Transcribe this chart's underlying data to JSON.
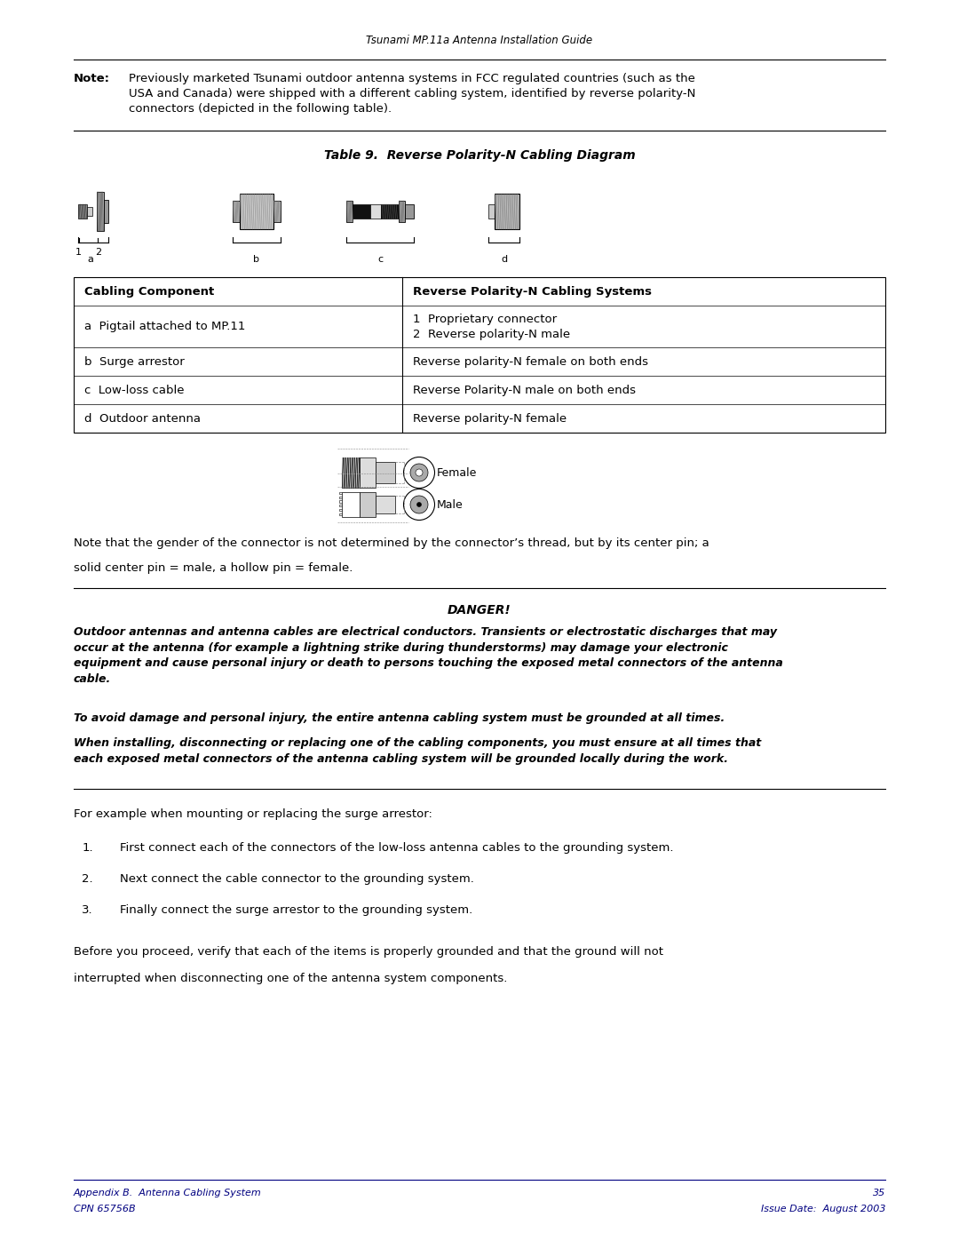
{
  "page_width": 10.8,
  "page_height": 13.97,
  "dpi": 100,
  "bg_color": "#ffffff",
  "header_text": "Tsunami MP.11a Antenna Installation Guide",
  "header_color": "#000000",
  "header_fontsize": 8.5,
  "note_label": "Note:",
  "note_text": "Previously marketed Tsunami outdoor antenna systems in FCC regulated countries (such as the\nUSA and Canada) were shipped with a different cabling system, identified by reverse polarity-N\nconnectors (depicted in the following table).",
  "note_fontsize": 9.5,
  "table_title": "Table 9.  Reverse Polarity-N Cabling Diagram",
  "table_title_fontsize": 10,
  "col1_header": "Cabling Component",
  "col2_header": "Reverse Polarity-N Cabling Systems",
  "col_header_fontsize": 9.5,
  "rows": [
    [
      "a  Pigtail attached to MP.11",
      "1  Proprietary connector\n2  Reverse polarity-N male"
    ],
    [
      "b  Surge arrestor",
      "Reverse polarity-N female on both ends"
    ],
    [
      "c  Low-loss cable",
      "Reverse Polarity-N male on both ends"
    ],
    [
      "d  Outdoor antenna",
      "Reverse polarity-N female"
    ]
  ],
  "row_fontsize": 9.5,
  "note_text2_line1": "Note that the gender of the connector is not determined by the connector’s thread, but by its center pin; a",
  "note_text2_line2": "solid center pin = male, a hollow pin = female.",
  "note_text2_fontsize": 9.5,
  "danger_title": "DANGER!",
  "danger_text1": "Outdoor antennas and antenna cables are electrical conductors. Transients or electrostatic discharges that may\noccur at the antenna (for example a lightning strike during thunderstorms) may damage your electronic\nequipment and cause personal injury or death to persons touching the exposed metal connectors of the antenna\ncable.",
  "danger_text2": "To avoid damage and personal injury, the entire antenna cabling system must be grounded at all times.",
  "danger_text3": "When installing, disconnecting or replacing one of the cabling components, you must ensure at all times that\neach exposed metal connectors of the antenna cabling system will be grounded locally during the work.",
  "danger_fontsize": 9.0,
  "example_text": "For example when mounting or replacing the surge arrestor:",
  "example_fontsize": 9.5,
  "steps": [
    "First connect each of the connectors of the low-loss antenna cables to the grounding system.",
    "Next connect the cable connector to the grounding system.",
    "Finally connect the surge arrestor to the grounding system."
  ],
  "steps_fontsize": 9.5,
  "before_text_line1": "Before you proceed, verify that each of the items is properly grounded and that the ground will not",
  "before_text_line2": "interrupted when disconnecting one of the antenna system components.",
  "before_fontsize": 9.5,
  "footer_left1": "Appendix B.  Antenna Cabling System",
  "footer_left2": "CPN 65756B",
  "footer_right1": "35",
  "footer_right2": "Issue Date:  August 2003",
  "footer_color": "#000080",
  "footer_fontsize": 8.0
}
